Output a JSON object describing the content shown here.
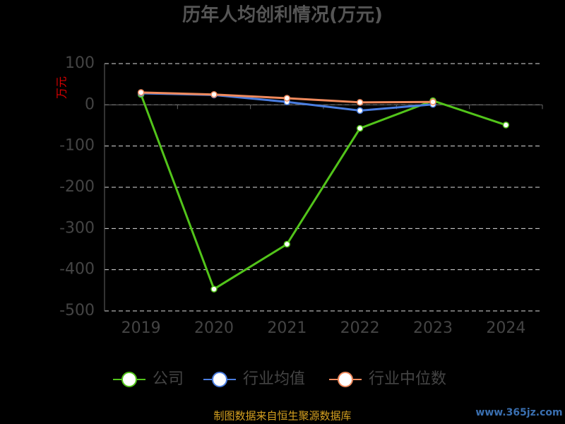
{
  "chart_data": {
    "type": "line",
    "title": "历年人均创利情况(万元)",
    "y_label": "万元",
    "categories": [
      "2019",
      "2020",
      "2021",
      "2022",
      "2023",
      "2024"
    ],
    "series": [
      {
        "name": "公司",
        "color": "#52c41a",
        "values": [
          25,
          -447,
          -338,
          -57,
          10,
          -49
        ]
      },
      {
        "name": "行业均值",
        "color": "#4a7de0",
        "values": [
          28,
          24,
          7,
          -14,
          1,
          null
        ]
      },
      {
        "name": "行业中位数",
        "color": "#f08a5d",
        "values": [
          30,
          25,
          16,
          6,
          7,
          null
        ]
      }
    ],
    "ylim": [
      -500,
      100
    ],
    "yticks": [
      100,
      0,
      -100,
      -200,
      -300,
      -400,
      -500
    ],
    "grid": true,
    "footer": "制图数据来自恒生聚源数据库",
    "watermark": "www.365jz.com"
  }
}
